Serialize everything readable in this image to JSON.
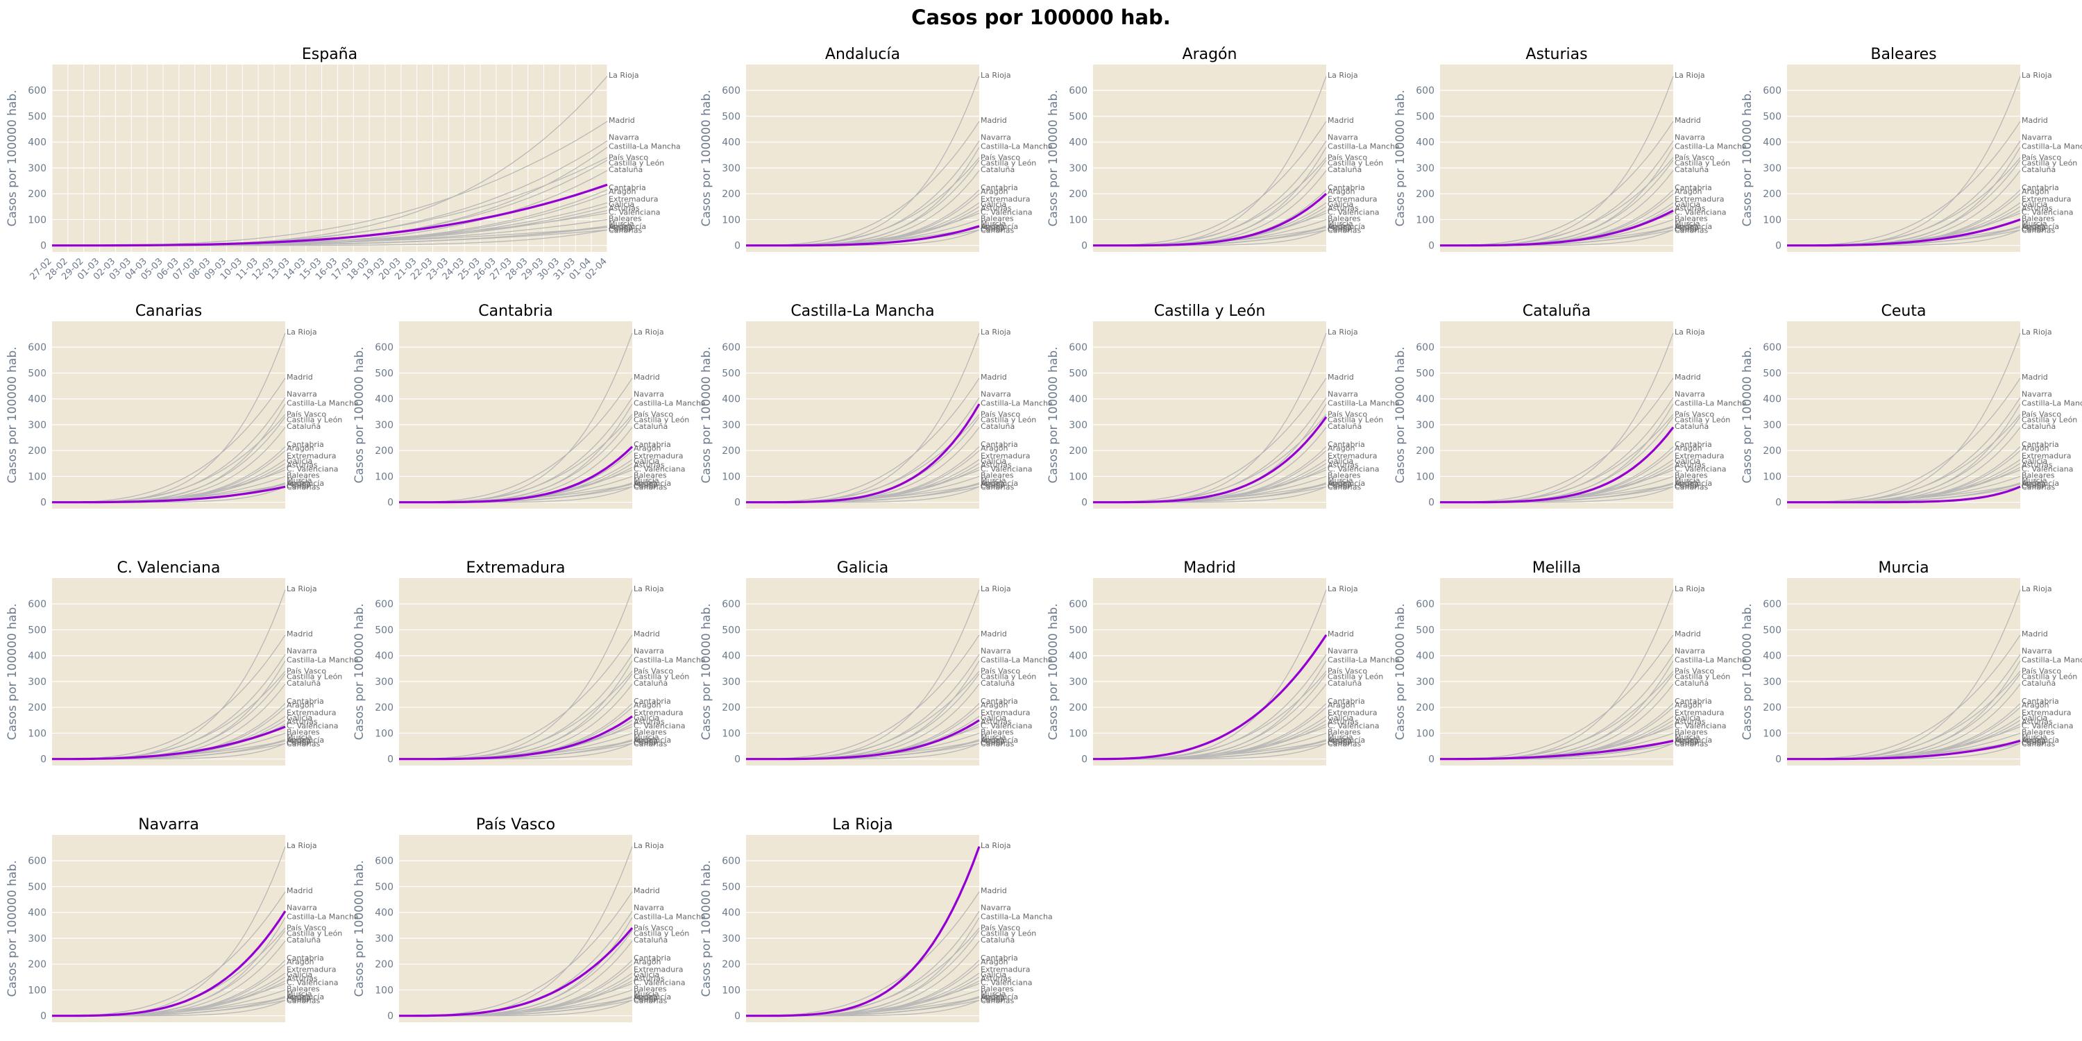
{
  "page": {
    "title": "Casos por 100000 hab."
  },
  "chart_data": {
    "type": "line",
    "ylabel": "Casos por 100000 hab.",
    "ylim": [
      -25,
      700
    ],
    "yticks": [
      0,
      100,
      200,
      300,
      400,
      500,
      600
    ],
    "grid": true,
    "colors": {
      "background": "#efe7d5",
      "grid": "#ffffff",
      "highlight": "#9400d3",
      "others": "#b8b8b8",
      "label": "#666666",
      "tick": "#6b7a8c"
    },
    "x_dates": [
      "27-02",
      "28-02",
      "29-02",
      "01-03",
      "02-03",
      "03-03",
      "04-03",
      "05-03",
      "06-03",
      "07-03",
      "08-03",
      "09-03",
      "10-03",
      "11-03",
      "12-03",
      "13-03",
      "14-03",
      "15-03",
      "16-03",
      "17-03",
      "18-03",
      "19-03",
      "20-03",
      "21-03",
      "22-03",
      "23-03",
      "24-03",
      "25-03",
      "26-03",
      "27-03",
      "28-03",
      "29-03",
      "30-03",
      "31-03",
      "01-04",
      "02-04"
    ],
    "panels": [
      {
        "title": "España",
        "highlight": "España"
      },
      {
        "title": "Andalucía",
        "highlight": "Andalucía"
      },
      {
        "title": "Aragón",
        "highlight": "Aragón"
      },
      {
        "title": "Asturias",
        "highlight": "Asturias"
      },
      {
        "title": "Baleares",
        "highlight": "Baleares"
      },
      {
        "title": "Canarias",
        "highlight": "Canarias"
      },
      {
        "title": "Cantabria",
        "highlight": "Cantabria"
      },
      {
        "title": "Castilla-La Mancha",
        "highlight": "Castilla-La Mancha"
      },
      {
        "title": "Castilla y León",
        "highlight": "Castilla y León"
      },
      {
        "title": "Cataluña",
        "highlight": "Cataluña"
      },
      {
        "title": "Ceuta",
        "highlight": "Ceuta"
      },
      {
        "title": "C. Valenciana",
        "highlight": "C. Valenciana"
      },
      {
        "title": "Extremadura",
        "highlight": "Extremadura"
      },
      {
        "title": "Galicia",
        "highlight": "Galicia"
      },
      {
        "title": "Madrid",
        "highlight": "Madrid"
      },
      {
        "title": "Melilla",
        "highlight": "Melilla"
      },
      {
        "title": "Murcia",
        "highlight": "Murcia"
      },
      {
        "title": "Navarra",
        "highlight": "Navarra"
      },
      {
        "title": "País Vasco",
        "highlight": "País Vasco"
      },
      {
        "title": "La Rioja",
        "highlight": "La Rioja"
      }
    ],
    "series": [
      {
        "name": "España",
        "final": 235,
        "shape": 1.0
      },
      {
        "name": "Andalucía",
        "final": 75,
        "shape": 1.2
      },
      {
        "name": "Aragón",
        "final": 200,
        "shape": 1.3
      },
      {
        "name": "Asturias",
        "final": 135,
        "shape": 1.1
      },
      {
        "name": "Baleares",
        "final": 100,
        "shape": 1.0
      },
      {
        "name": "Canarias",
        "final": 60,
        "shape": 1.0
      },
      {
        "name": "Cantabria",
        "final": 215,
        "shape": 1.3
      },
      {
        "name": "Castilla-La Mancha",
        "final": 380,
        "shape": 1.3
      },
      {
        "name": "Castilla y León",
        "final": 330,
        "shape": 1.2
      },
      {
        "name": "Cataluña",
        "final": 290,
        "shape": 1.3
      },
      {
        "name": "Ceuta",
        "final": 60,
        "shape": 2.0
      },
      {
        "name": "C. Valenciana",
        "final": 125,
        "shape": 0.9
      },
      {
        "name": "Extremadura",
        "final": 165,
        "shape": 1.2
      },
      {
        "name": "Galicia",
        "final": 150,
        "shape": 1.2
      },
      {
        "name": "Madrid",
        "final": 480,
        "shape": 0.9
      },
      {
        "name": "Melilla",
        "final": 70,
        "shape": 0.8
      },
      {
        "name": "Murcia",
        "final": 70,
        "shape": 1.1
      },
      {
        "name": "Navarra",
        "final": 405,
        "shape": 1.1
      },
      {
        "name": "País Vasco",
        "final": 340,
        "shape": 1.0
      },
      {
        "name": "La Rioja",
        "final": 655,
        "shape": 1.2
      }
    ],
    "end_labels": [
      {
        "name": "La Rioja",
        "value": 660
      },
      {
        "name": "Madrid",
        "value": 485
      },
      {
        "name": "Navarra",
        "value": 420
      },
      {
        "name": "Castilla-La Mancha",
        "value": 385
      },
      {
        "name": "País Vasco",
        "value": 342
      },
      {
        "name": "Castilla y León",
        "value": 320
      },
      {
        "name": "Cataluña",
        "value": 295
      },
      {
        "name": "Cantabria",
        "value": 225
      },
      {
        "name": "Aragón",
        "value": 210
      },
      {
        "name": "Extremadura",
        "value": 180
      },
      {
        "name": "Galicia",
        "value": 160
      },
      {
        "name": "Asturias",
        "value": 145
      },
      {
        "name": "C. Valenciana",
        "value": 130
      },
      {
        "name": "Baleares",
        "value": 105
      },
      {
        "name": "Murcia",
        "value": 85
      },
      {
        "name": "Andalucía",
        "value": 75
      },
      {
        "name": "Melilla",
        "value": 70
      },
      {
        "name": "Ceuta",
        "value": 65
      },
      {
        "name": "Canarias",
        "value": 60
      }
    ]
  }
}
